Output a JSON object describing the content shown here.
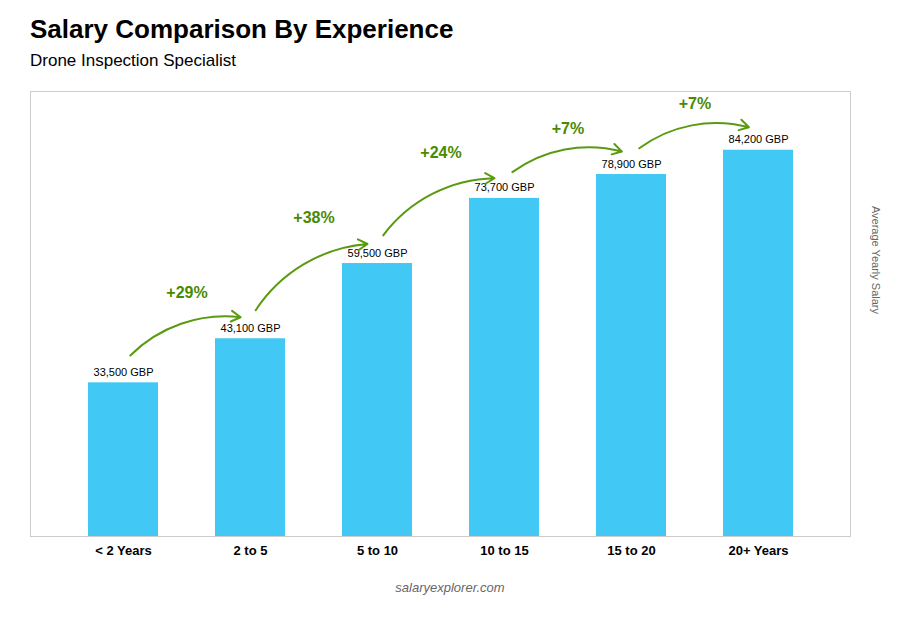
{
  "chart_data": {
    "type": "bar",
    "title": "Salary Comparison By Experience",
    "subtitle": "Drone Inspection Specialist",
    "categories": [
      "< 2 Years",
      "2 to 5",
      "5 to 10",
      "10 to 15",
      "15 to 20",
      "20+ Years"
    ],
    "values": [
      33500,
      43100,
      59500,
      73700,
      78900,
      84200
    ],
    "value_labels": [
      "33,500 GBP",
      "43,100 GBP",
      "59,500 GBP",
      "73,700 GBP",
      "78,900 GBP",
      "84,200 GBP"
    ],
    "data_labels": true,
    "color": "#42C8F5",
    "ylim": [
      0,
      97000
    ],
    "tick_labels": "x",
    "ylabel": "Average Yearly Salary",
    "annotations": [
      {
        "text": "+29%",
        "from": "< 2 Years",
        "to": "2 to 5"
      },
      {
        "text": "+38%",
        "from": "2 to 5",
        "to": "5 to 10"
      },
      {
        "text": "+24%",
        "from": "5 to 10",
        "to": "10 to 15"
      },
      {
        "text": "+7%",
        "from": "10 to 15",
        "to": "15 to 20"
      },
      {
        "text": "+7%",
        "from": "15 to 20",
        "to": "20+ Years"
      }
    ],
    "caption": "salaryexplorer.com"
  }
}
